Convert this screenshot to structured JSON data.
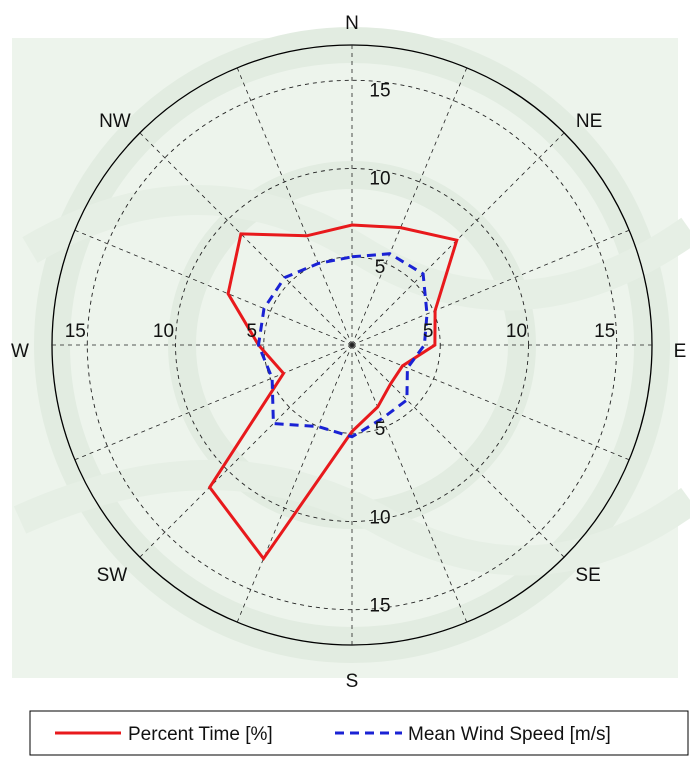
{
  "chart_data": {
    "type": "polar-line",
    "direction_labels": [
      "N",
      "NE",
      "E",
      "SE",
      "S",
      "SW",
      "W",
      "NW"
    ],
    "radial_ticks": [
      5,
      10,
      15
    ],
    "radial_max": 17,
    "grid": true,
    "legend_position": "bottom",
    "angles_deg": [
      0,
      22.5,
      45,
      67.5,
      90,
      112.5,
      135,
      157.5,
      180,
      202.5,
      225,
      247.5,
      270,
      292.5,
      315,
      337.5
    ],
    "series": [
      {
        "name": "Percent Time [%]",
        "color": "#e8191c",
        "dash": "solid",
        "values": [
          6.8,
          7.2,
          8.4,
          5.1,
          4.7,
          3.1,
          3.1,
          3.8,
          4.9,
          13.1,
          11.4,
          4.2,
          5.3,
          7.6,
          8.9,
          6.7
        ]
      },
      {
        "name": "Mean Wind Speed [m/s]",
        "color": "#1a22d4",
        "dash": "dashed",
        "values": [
          5.0,
          5.6,
          5.7,
          4.6,
          4.1,
          3.4,
          4.4,
          4.5,
          5.2,
          5.0,
          6.3,
          4.9,
          5.3,
          5.4,
          5.4,
          5.0
        ]
      }
    ]
  },
  "legend": {
    "items": [
      {
        "label": "Percent Time [%]",
        "color": "#e8191c",
        "dash": "solid"
      },
      {
        "label": "Mean Wind Speed [m/s]",
        "color": "#1a22d4",
        "dash": "dashed"
      }
    ]
  }
}
